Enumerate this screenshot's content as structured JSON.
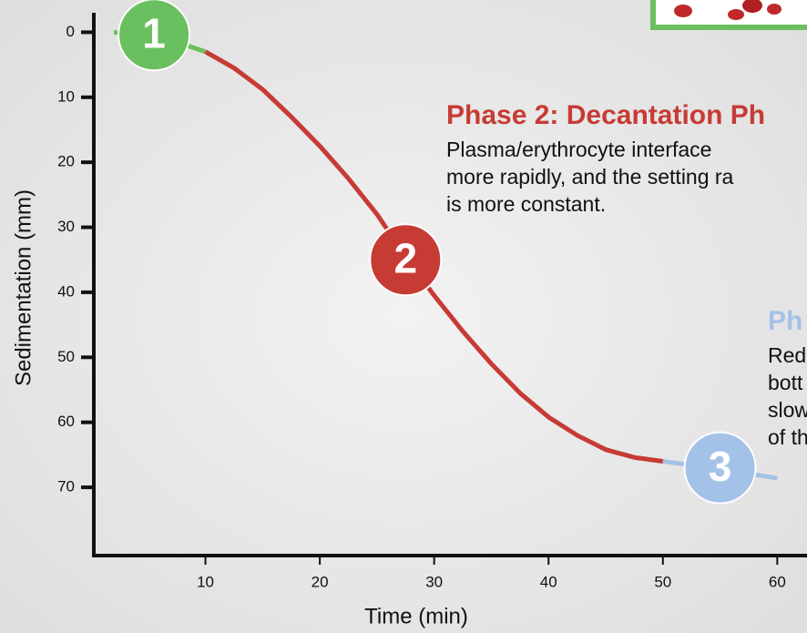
{
  "chart_data": {
    "type": "line",
    "x_label": "Time (min)",
    "y_label": "Sedimentation (mm)",
    "xlim": [
      0,
      62.6
    ],
    "ylim": [
      -3,
      80.5
    ],
    "xticks": [
      10,
      20,
      30,
      40,
      50,
      60
    ],
    "yticks": [
      0,
      10,
      20,
      30,
      40,
      50,
      60,
      70
    ],
    "series": [
      {
        "color": "#6abf5e",
        "x": [
          2,
          4,
          6,
          8,
          10
        ],
        "values": [
          0,
          0.3,
          0.8,
          1.8,
          3
        ]
      },
      {
        "color": "#c73b35",
        "x": [
          10,
          12.5,
          15,
          17.5,
          20,
          22.5,
          25,
          27.5,
          30,
          32.5,
          35,
          37.5,
          40,
          42.5,
          45,
          47.5,
          50
        ],
        "values": [
          3,
          5.5,
          8.8,
          13,
          17.5,
          22.5,
          28,
          34.5,
          40.5,
          46,
          51,
          55.5,
          59.2,
          62,
          64.2,
          65.4,
          66
        ]
      },
      {
        "color": "#a4c2e8",
        "x": [
          50,
          52.5,
          55,
          57.5,
          60
        ],
        "values": [
          66,
          66.6,
          67.2,
          67.9,
          68.6
        ]
      }
    ],
    "markers": [
      {
        "label": "1",
        "x": 5.5,
        "y": 0.4,
        "color": "#6abf5e"
      },
      {
        "label": "2",
        "x": 27.5,
        "y": 35,
        "color": "#c73b35"
      },
      {
        "label": "3",
        "x": 55,
        "y": 67,
        "color": "#a4c2e8"
      }
    ],
    "annotations": [
      {
        "title": "Phase 2: Decantation Ph",
        "color": "#c73b35",
        "lines": [
          "Plasma/erythrocyte interface",
          "more rapidly, and the setting ra",
          "is more constant."
        ]
      },
      {
        "title": "Ph",
        "color": "#a4c2e8",
        "lines": [
          "Red",
          "bott",
          "slow",
          "of th"
        ]
      }
    ]
  }
}
